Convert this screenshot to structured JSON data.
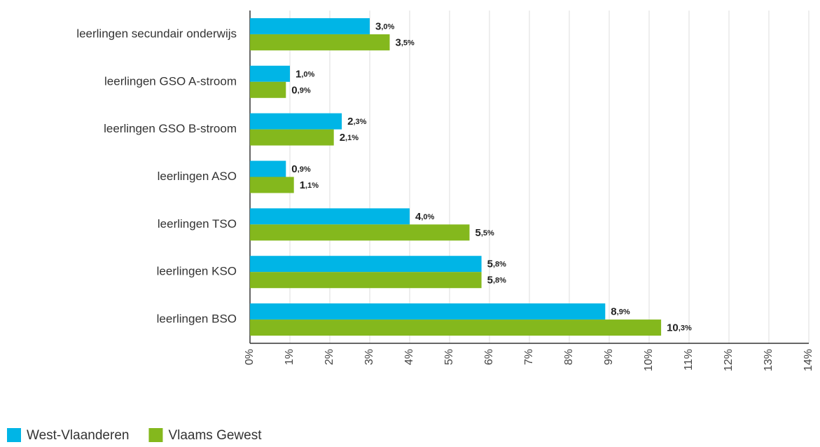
{
  "chart_data": {
    "type": "bar",
    "orientation": "horizontal",
    "categories": [
      "leerlingen secundair onderwijs",
      "leerlingen GSO A-stroom",
      "leerlingen GSO B-stroom",
      "leerlingen ASO",
      "leerlingen TSO",
      "leerlingen KSO",
      "leerlingen BSO"
    ],
    "series": [
      {
        "name": "West-Vlaanderen",
        "color": "#00b5e6",
        "values": [
          3.0,
          1.0,
          2.3,
          0.9,
          4.0,
          5.8,
          8.9
        ],
        "value_labels": [
          "3,0%",
          "1,0%",
          "2,3%",
          "0,9%",
          "4,0%",
          "5,8%",
          "8,9%"
        ]
      },
      {
        "name": "Vlaams Gewest",
        "color": "#84b81d",
        "values": [
          3.5,
          0.9,
          2.1,
          1.1,
          5.5,
          5.8,
          10.3
        ],
        "value_labels": [
          "3,5%",
          "0,9%",
          "2,1%",
          "1,1%",
          "5,5%",
          "5,8%",
          "10,3%"
        ]
      }
    ],
    "xlim": [
      0,
      14
    ],
    "xticks": [
      {
        "value": 0,
        "label": "0%"
      },
      {
        "value": 1,
        "label": "1%"
      },
      {
        "value": 2,
        "label": "2%"
      },
      {
        "value": 3,
        "label": "3%"
      },
      {
        "value": 4,
        "label": "4%"
      },
      {
        "value": 5,
        "label": "5%"
      },
      {
        "value": 6,
        "label": "6%"
      },
      {
        "value": 7,
        "label": "7%"
      },
      {
        "value": 8,
        "label": "8%"
      },
      {
        "value": 9,
        "label": "9%"
      },
      {
        "value": 10,
        "label": "10%"
      },
      {
        "value": 11,
        "label": "11%"
      },
      {
        "value": 12,
        "label": "12%"
      },
      {
        "value": 13,
        "label": "13%"
      },
      {
        "value": 14,
        "label": "14%"
      }
    ],
    "grid": true,
    "legend": "bottom-left"
  }
}
